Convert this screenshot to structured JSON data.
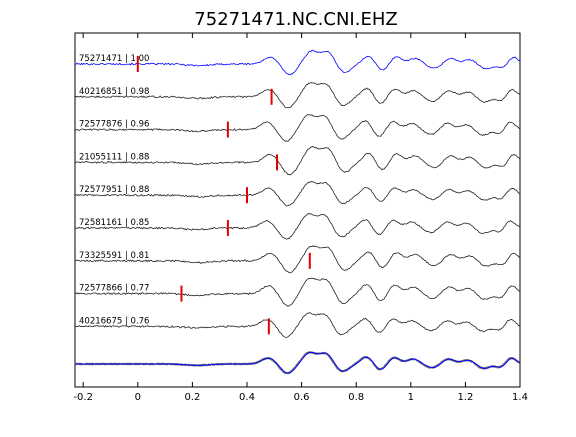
{
  "chart_data": {
    "type": "line",
    "title": "75271471.NC.CNI.EHZ",
    "xlabel": "",
    "ylabel": "",
    "xlim": [
      -0.23,
      1.4
    ],
    "xticks": [
      -0.2,
      0,
      0.2,
      0.4,
      0.6,
      0.8,
      1,
      1.2,
      1.4
    ],
    "xtick_labels": [
      "-0.2",
      "0",
      "0.2",
      "0.4",
      "0.6",
      "0.8",
      "1",
      "1.2",
      "1.4"
    ],
    "grid": false,
    "legend": "none",
    "colors": {
      "reference": "#0000ff",
      "trace": "#222222",
      "pick": "#e00000",
      "stack": "#777777"
    },
    "series": [
      {
        "name": "75271471 | 1.00",
        "pick_time": 0.0
      },
      {
        "name": "40216851 | 0.98",
        "pick_time": 0.49
      },
      {
        "name": "72577876 | 0.96",
        "pick_time": 0.33
      },
      {
        "name": "21055111 | 0.88",
        "pick_time": 0.51
      },
      {
        "name": "72577951 | 0.88",
        "pick_time": 0.4
      },
      {
        "name": "72581161 | 0.85",
        "pick_time": 0.33
      },
      {
        "name": "73325591 | 0.81",
        "pick_time": 0.63
      },
      {
        "name": "72577866 | 0.77",
        "pick_time": 0.16
      },
      {
        "name": "40216675 | 0.76",
        "pick_time": 0.48
      }
    ],
    "stack": {
      "count": 9,
      "time_range": [
        -0.23,
        1.4
      ]
    }
  }
}
